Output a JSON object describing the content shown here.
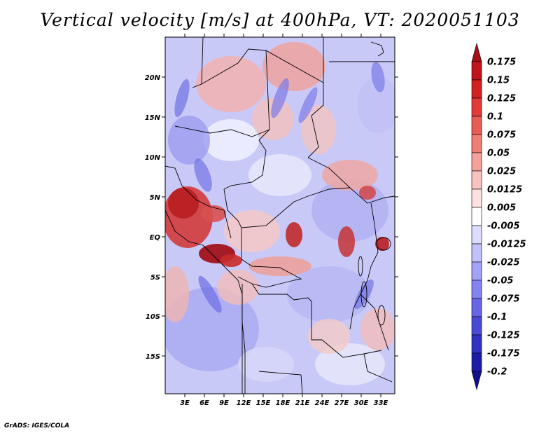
{
  "title": "Vertical velocity [m/s] at 400hPa, VT: 2020051103",
  "footer": "GrADS: IGES/COLA",
  "map": {
    "lat_labels": [
      "20N",
      "15N",
      "10N",
      "5N",
      "EQ",
      "5S",
      "10S",
      "15S"
    ],
    "lon_labels": [
      "3E",
      "6E",
      "9E",
      "12E",
      "15E",
      "18E",
      "21E",
      "24E",
      "27E",
      "30E",
      "33E"
    ]
  },
  "colorbar": {
    "levels": [
      "0.175",
      "0.15",
      "0.125",
      "0.1",
      "0.075",
      "0.05",
      "0.025",
      "0.0125",
      "0.005",
      "-0.005",
      "-0.0125",
      "-0.025",
      "-0.05",
      "-0.075",
      "-0.1",
      "-0.125",
      "-0.175",
      "-0.2"
    ],
    "colors": [
      "#a50f15",
      "#c0141c",
      "#d32020",
      "#e03b37",
      "#e85c55",
      "#ef7e77",
      "#f4a19c",
      "#f8c2bf",
      "#fbe1df",
      "#ffffff",
      "#dcdcff",
      "#c0c0fb",
      "#a2a2f6",
      "#8484f0",
      "#6666e6",
      "#4a4ad8",
      "#3030c4",
      "#1c1ca8",
      "#10108a"
    ]
  }
}
